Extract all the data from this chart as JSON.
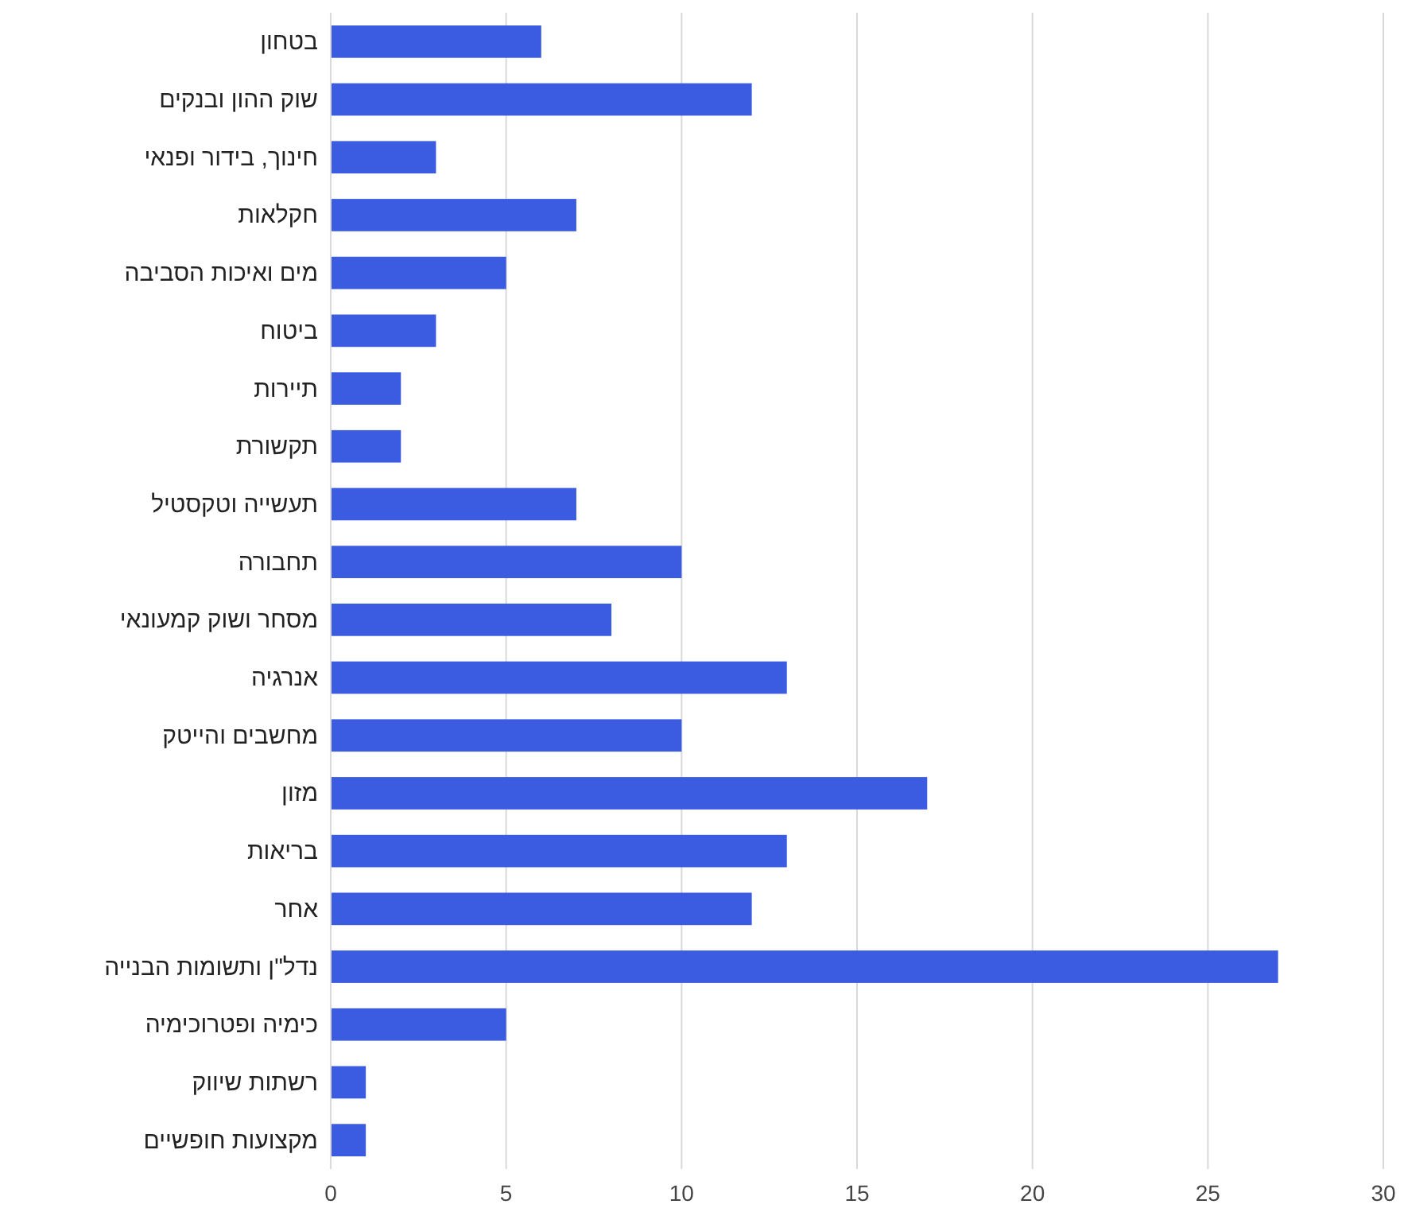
{
  "chart_data": {
    "type": "bar",
    "orientation": "horizontal",
    "categories": [
      "בטחון",
      "שוק ההון ובנקים",
      "חינוך, בידור ופנאי",
      "חקלאות",
      "מים ואיכות הסביבה",
      "ביטוח",
      "תיירות",
      "תקשורת",
      "תעשייה וטקסטיל",
      "תחבורה",
      "מסחר ושוק קמעונאי",
      "אנרגיה",
      "מחשבים והייטק",
      "מזון",
      "בריאות",
      "אחר",
      "נדל\"ן ותשומות הבנייה",
      "כימיה ופטרוכימיה",
      "רשתות שיווק",
      "מקצועות חופשיים"
    ],
    "values": [
      6,
      12,
      3,
      7,
      5,
      3,
      2,
      2,
      7,
      10,
      8,
      13,
      10,
      17,
      13,
      12,
      27,
      5,
      1,
      1
    ],
    "color": "#3b5ce0",
    "xlim": [
      0,
      30
    ],
    "xticks": [
      0,
      5,
      10,
      15,
      20,
      25,
      30
    ],
    "grid": "x"
  }
}
